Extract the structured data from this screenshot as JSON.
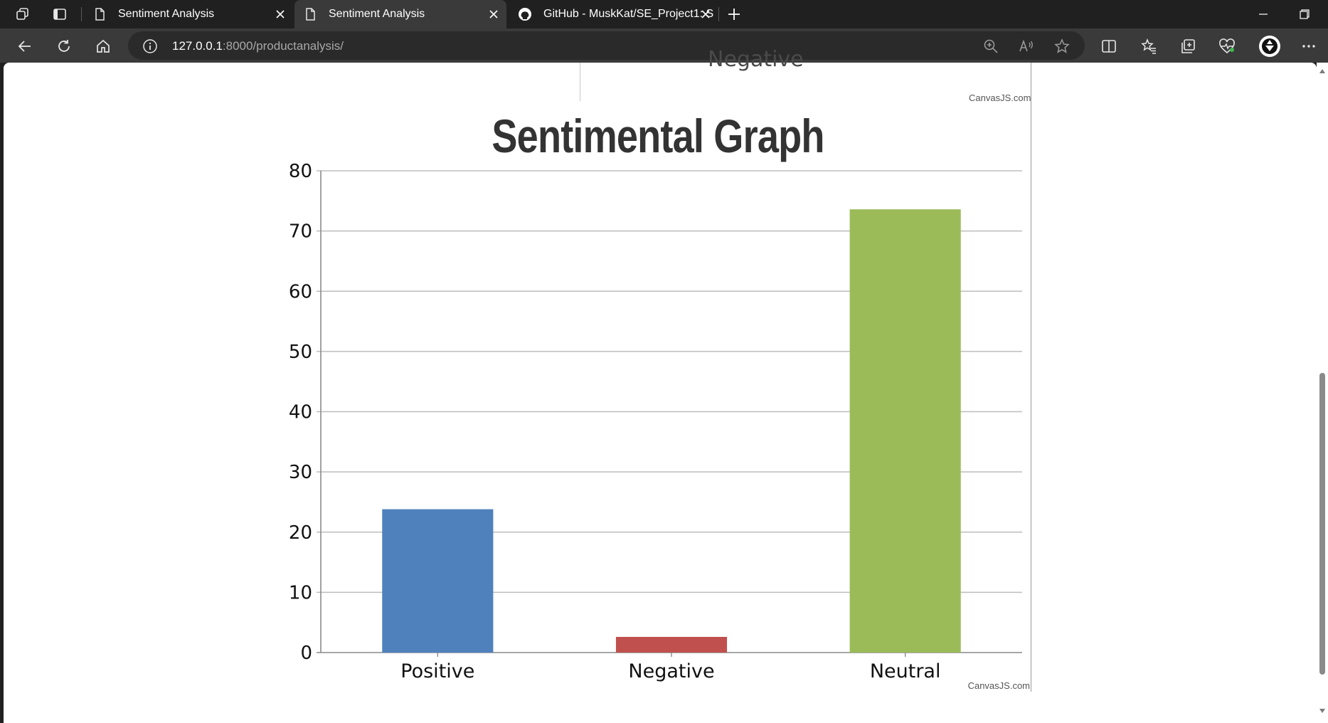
{
  "browser": {
    "tabs": [
      {
        "label": "Sentiment Analysis",
        "icon": "page-icon",
        "active": false
      },
      {
        "label": "Sentiment Analysis",
        "icon": "page-icon",
        "active": true
      },
      {
        "label": "GitHub - MuskKat/SE_Project1: S",
        "icon": "github-icon",
        "active": false
      }
    ],
    "url_host": "127.0.0.1",
    "url_rest": ":8000/productanalysis/"
  },
  "page": {
    "previous_chart_label": "Negative",
    "credit_top": "CanvasJS.com"
  },
  "chart_data": {
    "type": "bar",
    "title": "Sentimental Graph",
    "categories": [
      "Positive",
      "Negative",
      "Neutral"
    ],
    "values": [
      23.8,
      2.6,
      73.6
    ],
    "colors": [
      "#4f81bc",
      "#c0504e",
      "#9bbb58"
    ],
    "ylim": [
      0,
      80
    ],
    "yticks": [
      0,
      10,
      20,
      30,
      40,
      50,
      60,
      70,
      80
    ],
    "grid": true,
    "credit": "CanvasJS.com"
  }
}
